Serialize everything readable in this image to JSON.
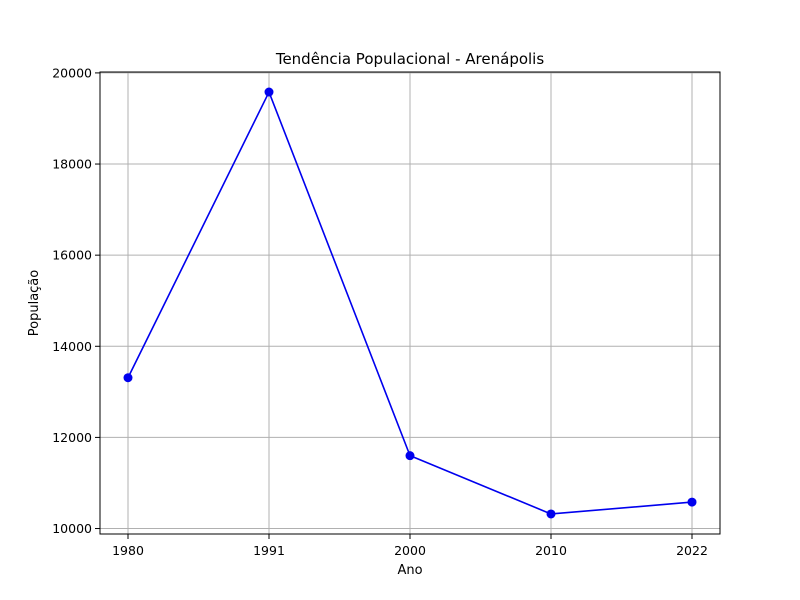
{
  "chart_data": {
    "type": "line",
    "title": "Tendência Populacional - Arenápolis",
    "xlabel": "Ano",
    "ylabel": "População",
    "categories": [
      "1980",
      "1991",
      "2000",
      "2010",
      "2022"
    ],
    "series": [
      {
        "values": [
          13310,
          19580,
          11600,
          10320,
          10580
        ],
        "color": "#0000ee",
        "marker": "circle"
      }
    ],
    "yticks": [
      10000,
      12000,
      14000,
      16000,
      18000,
      20000
    ],
    "ylim": [
      9880,
      20020
    ],
    "grid": true,
    "legend": "none"
  }
}
